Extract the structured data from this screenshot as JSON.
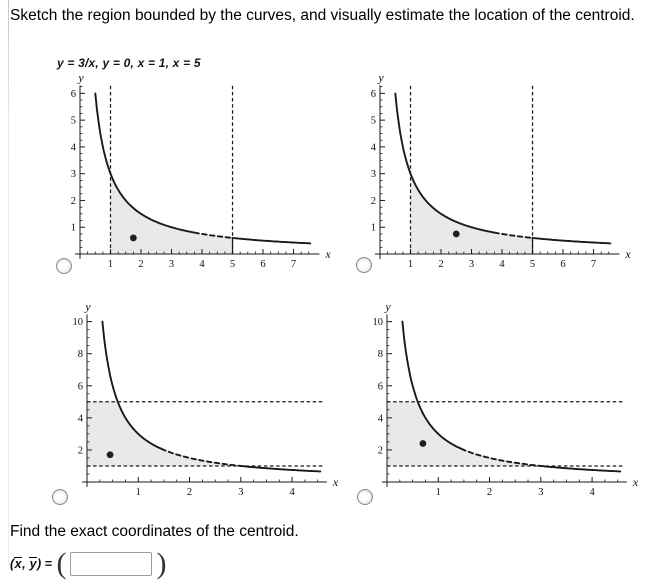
{
  "problem": {
    "title": "Sketch the region bounded by the curves, and visually estimate the location of the centroid.",
    "equations": "y = 3/x,  y = 0,  x = 1,  x = 5",
    "find_text": "Find the exact coordinates of the centroid."
  },
  "answer": {
    "open": "(",
    "x": "x",
    "comma": ", ",
    "y": "y",
    "close": ")",
    "equals": " = ",
    "lparen": "(",
    "rparen": ")",
    "value": ""
  },
  "options": [
    {
      "id": 1,
      "selected": false
    },
    {
      "id": 2,
      "selected": false
    },
    {
      "id": 3,
      "selected": false
    },
    {
      "id": 4,
      "selected": false
    }
  ],
  "chart_data": [
    {
      "type": "line",
      "title": "option 1: region under y = 3/x from x = 1 to x = 5, centroid dot near (1.75, 0.6)",
      "curve_expression": "y = 3/x",
      "curve": {
        "k": 3,
        "x_start": 0.5,
        "x_end": 7.55,
        "dash_x_range": [
          3.75,
          5
        ]
      },
      "x_axis": {
        "label": "x",
        "scale": 7.9,
        "line_end": 7.75,
        "minor_step": 0.25,
        "minor_end": 7.5,
        "majors": [
          1,
          2,
          3,
          4,
          5,
          6,
          7
        ]
      },
      "y_axis": {
        "label": "y",
        "scale": 6.35,
        "line_end": 6.3,
        "minor_step": 0.25,
        "minor_end": 6.25,
        "majors": [
          1,
          2,
          3,
          4,
          5,
          6
        ]
      },
      "dashed_vlines": [
        1,
        5
      ],
      "dashed_hlines": [],
      "region": {
        "type": "under_curve_between_x",
        "from": 1,
        "to": 5
      },
      "region_solid_edge": {
        "x": 5,
        "y_from": 0,
        "y_to": 0.6
      },
      "centroid_dot": [
        1.75,
        0.6
      ],
      "colors": {
        "ink": "#1a1a1a",
        "region": "#e9e9e9"
      }
    },
    {
      "type": "line",
      "title": "option 2: region under y = 3/x from x = 1 to x = 5, centroid dot near (2.5, 0.75)",
      "curve_expression": "y = 3/x",
      "curve": {
        "k": 3,
        "x_start": 0.5,
        "x_end": 7.55,
        "dash_x_range": [
          3.75,
          5
        ]
      },
      "x_axis": {
        "label": "x",
        "scale": 7.9,
        "line_end": 7.75,
        "minor_step": 0.25,
        "minor_end": 7.5,
        "majors": [
          1,
          2,
          3,
          4,
          5,
          6,
          7
        ]
      },
      "y_axis": {
        "label": "y",
        "scale": 6.35,
        "line_end": 6.3,
        "minor_step": 0.25,
        "minor_end": 6.25,
        "majors": [
          1,
          2,
          3,
          4,
          5,
          6
        ]
      },
      "dashed_vlines": [
        1,
        5
      ],
      "dashed_hlines": [],
      "region": {
        "type": "under_curve_between_x",
        "from": 1,
        "to": 5
      },
      "region_solid_edge": {
        "x": 5,
        "y_from": 0,
        "y_to": 0.6
      },
      "centroid_dot": [
        2.5,
        0.75
      ],
      "colors": {
        "ink": "#1a1a1a",
        "region": "#e9e9e9"
      }
    },
    {
      "type": "line",
      "title": "option 3: region left of x = 3/y from y = 1 to y = 5, centroid dot near (0.45, 1.7)",
      "curve_expression": "y = 3/x",
      "curve": {
        "k": 3,
        "x_start": 0.3,
        "x_end": 4.55,
        "dash_x_range": [
          1.45,
          3
        ]
      },
      "x_axis": {
        "label": "x",
        "scale": 4.7,
        "line_end": 4.62,
        "minor_step": 0.25,
        "minor_end": 4.5,
        "majors": [
          1,
          2,
          3,
          4
        ]
      },
      "y_axis": {
        "label": "y",
        "scale": 10.6,
        "line_end": 10.45,
        "minor_step": 0.5,
        "minor_end": 10,
        "majors": [
          2,
          4,
          6,
          8,
          10
        ]
      },
      "dashed_vlines": [],
      "dashed_hlines": [
        1,
        5
      ],
      "region": {
        "type": "left_of_curve_between_y",
        "from": 1,
        "to": 5
      },
      "centroid_dot": [
        0.45,
        1.7
      ],
      "colors": {
        "ink": "#1a1a1a",
        "region": "#e9e9e9"
      }
    },
    {
      "type": "line",
      "title": "option 4: region left of x = 3/y from y = 1 to y = 5, centroid dot near (0.7, 2.4)",
      "curve_expression": "y = 3/x",
      "curve": {
        "k": 3,
        "x_start": 0.3,
        "x_end": 4.55,
        "dash_x_range": [
          1.45,
          3
        ]
      },
      "x_axis": {
        "label": "x",
        "scale": 4.7,
        "line_end": 4.62,
        "minor_step": 0.25,
        "minor_end": 4.5,
        "majors": [
          1,
          2,
          3,
          4
        ]
      },
      "y_axis": {
        "label": "y",
        "scale": 10.6,
        "line_end": 10.45,
        "minor_step": 0.5,
        "minor_end": 10,
        "majors": [
          2,
          4,
          6,
          8,
          10
        ]
      },
      "dashed_vlines": [],
      "dashed_hlines": [
        1,
        5
      ],
      "region": {
        "type": "left_of_curve_between_y",
        "from": 1,
        "to": 5
      },
      "centroid_dot": [
        0.7,
        2.4
      ],
      "colors": {
        "ink": "#1a1a1a",
        "region": "#e9e9e9"
      }
    }
  ]
}
